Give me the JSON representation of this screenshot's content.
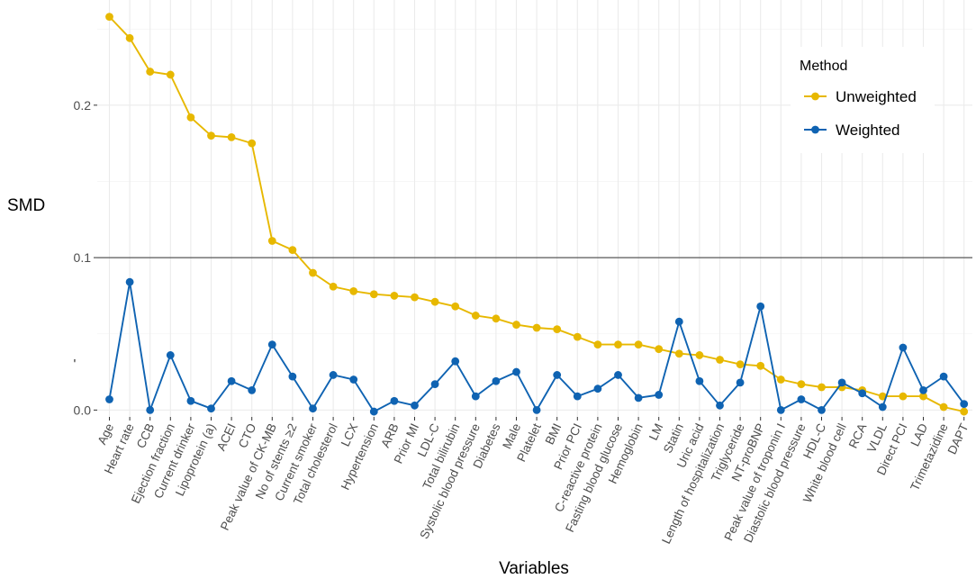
{
  "chart_data": {
    "type": "line",
    "title": "",
    "xlabel": "Variables",
    "ylabel": "SMD",
    "ylim": [
      -0.0045,
      0.269
    ],
    "yticks": [
      0.0,
      0.1,
      0.2
    ],
    "ytick_labels": [
      "0.0",
      "0.1",
      "0.2"
    ],
    "reference_line": 0.1,
    "grid": true,
    "legend_position": "top-right",
    "legend_title": "Method",
    "categories": [
      "Age",
      "Heart rate",
      "CCB",
      "Ejection fraction",
      "Current drinker",
      "Lipoprotein (a)",
      "ACEI",
      "CTO",
      "Peak value of CK-MB",
      "No of stents ≥2",
      "Current smoker",
      "Total cholesterol",
      "LCX",
      "Hypertension",
      "ARB",
      "Prior MI",
      "LDL-C",
      "Total bilirubin",
      "Systolic blood pressure",
      "Diabetes",
      "Male",
      "Platelet",
      "BMI",
      "Prior PCI",
      "C-reactive protein",
      "Fasting blood glucose",
      "Hemoglobin",
      "LM",
      "Statin",
      "Uric acid",
      "Length of hospitalization",
      "Triglyceride",
      "NT-proBNP",
      "Peak value of troponin I",
      "Diastolic blood pressure",
      "HDL-C",
      "White blood cell",
      "RCA",
      "VLDL",
      "Direct PCI",
      "LAD",
      "Trimetazidine",
      "DAPT"
    ],
    "series": [
      {
        "name": "Unweighted",
        "color": "#e7b800",
        "values": [
          0.258,
          0.244,
          0.222,
          0.22,
          0.192,
          0.18,
          0.179,
          0.175,
          0.111,
          0.105,
          0.09,
          0.081,
          0.078,
          0.076,
          0.075,
          0.074,
          0.071,
          0.068,
          0.062,
          0.06,
          0.056,
          0.054,
          0.053,
          0.048,
          0.043,
          0.043,
          0.043,
          0.04,
          0.037,
          0.036,
          0.033,
          0.03,
          0.029,
          0.02,
          0.017,
          0.015,
          0.015,
          0.013,
          0.009,
          0.009,
          0.009,
          0.002,
          -0.001
        ]
      },
      {
        "name": "Weighted",
        "color": "#0f63b2",
        "values": [
          0.007,
          0.084,
          0.0,
          0.036,
          0.006,
          0.001,
          0.019,
          0.013,
          0.043,
          0.022,
          0.001,
          0.023,
          0.02,
          -0.001,
          0.006,
          0.003,
          0.017,
          0.032,
          0.009,
          0.019,
          0.025,
          0.0,
          0.023,
          0.009,
          0.014,
          0.023,
          0.008,
          0.01,
          0.058,
          0.019,
          0.003,
          0.018,
          0.068,
          0.0,
          0.007,
          0.0,
          0.018,
          0.011,
          0.002,
          0.041,
          0.013,
          0.022,
          0.004
        ]
      }
    ],
    "stray_mark": {
      "x_category": "Age",
      "y": 0.031,
      "text": "'"
    }
  }
}
